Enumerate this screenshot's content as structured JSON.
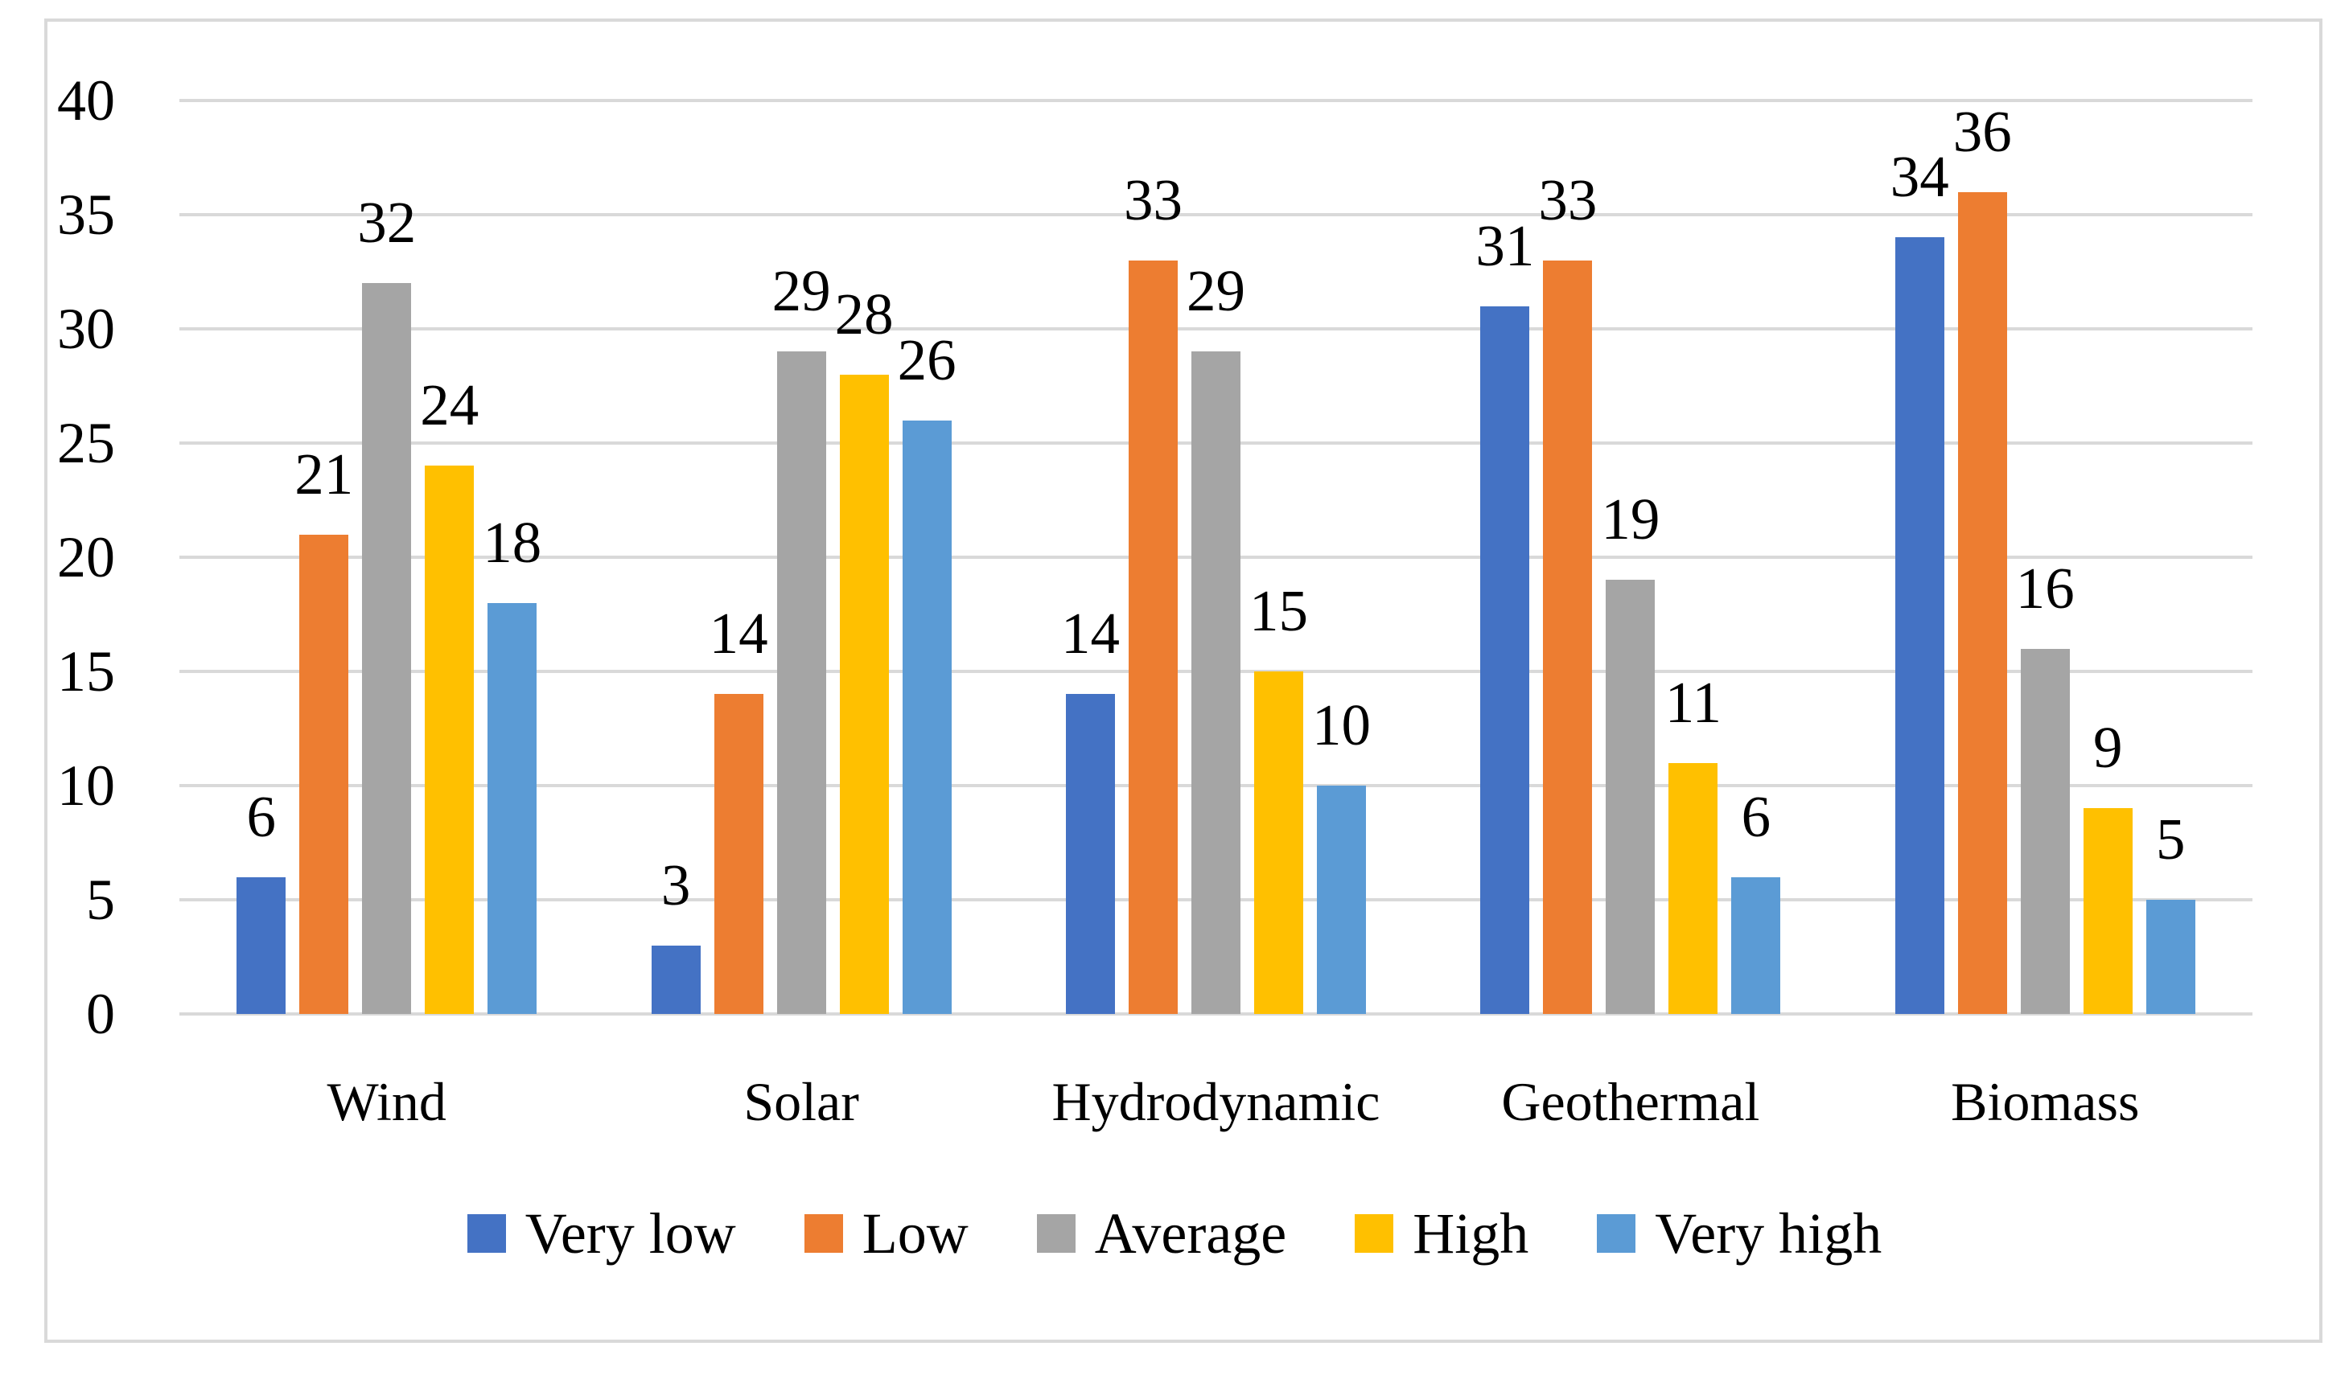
{
  "figure": {
    "background_color": "#ffffff",
    "frame_border_color": "#d9d9d9",
    "gridline_color": "#d9d9d9",
    "text_color": "#000000"
  },
  "chart_data": {
    "type": "bar",
    "title": "",
    "xlabel": "",
    "ylabel": "",
    "categories": [
      "Wind",
      "Solar",
      "Hydrodynamic",
      "Geothermal",
      "Biomass"
    ],
    "series": [
      {
        "name": "Very low",
        "color": "#4472C4",
        "values": [
          6,
          3,
          14,
          31,
          34
        ]
      },
      {
        "name": "Low",
        "color": "#ED7D31",
        "values": [
          21,
          14,
          33,
          33,
          36
        ]
      },
      {
        "name": "Average",
        "color": "#A5A5A5",
        "values": [
          32,
          29,
          29,
          19,
          16
        ]
      },
      {
        "name": "High",
        "color": "#FFC000",
        "values": [
          24,
          28,
          15,
          11,
          9
        ]
      },
      {
        "name": "Very high",
        "color": "#5B9BD5",
        "values": [
          18,
          26,
          10,
          6,
          5
        ]
      }
    ],
    "data_labels": true,
    "ylim": [
      0,
      40
    ],
    "ytick_step": 5,
    "ytick_labels": [
      "0",
      "5",
      "10",
      "15",
      "20",
      "25",
      "30",
      "35",
      "40"
    ],
    "grid": true,
    "legend_position": "bottom"
  }
}
